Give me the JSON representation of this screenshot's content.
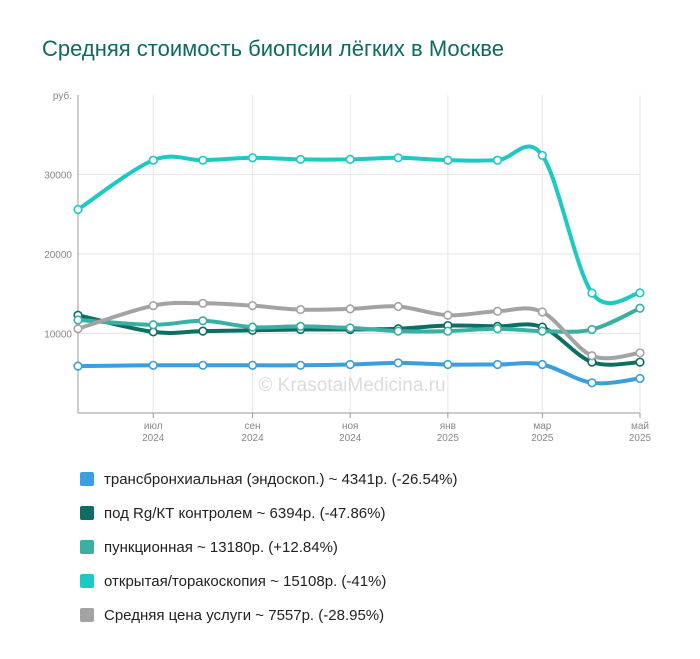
{
  "chart_data": {
    "type": "line",
    "title": "Средняя стоимость биопсии лёгких в Москве",
    "ylabel": "руб.",
    "ylim": [
      0,
      40000
    ],
    "yticks": [
      10000,
      20000,
      30000
    ],
    "ytick_labels": [
      "10000",
      "20000",
      "30000"
    ],
    "xticks": [
      {
        "month": "июл",
        "year": "2024"
      },
      {
        "month": "сен",
        "year": "2024"
      },
      {
        "month": "ноя",
        "year": "2024"
      },
      {
        "month": "янв",
        "year": "2025"
      },
      {
        "month": "мар",
        "year": "2025"
      },
      {
        "month": "май",
        "year": "2025"
      }
    ],
    "x": [
      "2024-05-15",
      "2024-07-01",
      "2024-08-01",
      "2024-09-01",
      "2024-10-01",
      "2024-11-01",
      "2024-12-01",
      "2025-01-01",
      "2025-02-01",
      "2025-03-01",
      "2025-04-01",
      "2025-05-01"
    ],
    "grid": true,
    "legend_position": "bottom",
    "watermark": "© KrasotaiMedicina.ru",
    "series": [
      {
        "name": "трансбронхиальная (эндоскоп.) ~ 4341р. (-26.54%)",
        "color": "#3a9ee0",
        "values": [
          5900,
          6000,
          6000,
          6000,
          6000,
          6100,
          6300,
          6100,
          6100,
          6100,
          3800,
          4341
        ]
      },
      {
        "name": "под Rg/КТ контролем ~ 6394р. (-47.86%)",
        "color": "#0d6e64",
        "values": [
          12300,
          10200,
          10300,
          10400,
          10500,
          10500,
          10600,
          11000,
          10900,
          10800,
          6400,
          6394
        ]
      },
      {
        "name": "пункционная ~ 13180р. (+12.84%)",
        "color": "#3aafa3",
        "values": [
          11700,
          11100,
          11600,
          10800,
          10900,
          10700,
          10300,
          10300,
          10600,
          10300,
          10500,
          13180
        ]
      },
      {
        "name": "открытая/торакоскопия ~ 15108р. (-41%)",
        "color": "#1dc9c4",
        "values": [
          25600,
          31800,
          31800,
          32100,
          31900,
          31900,
          32100,
          31800,
          31800,
          32400,
          15100,
          15108
        ]
      },
      {
        "name": "Средняя цена услуги ~ 7557р. (-28.95%)",
        "color": "#a3a3a3",
        "values": [
          10600,
          13500,
          13800,
          13500,
          13000,
          13100,
          13400,
          12300,
          12800,
          12700,
          7200,
          7557
        ]
      }
    ]
  }
}
